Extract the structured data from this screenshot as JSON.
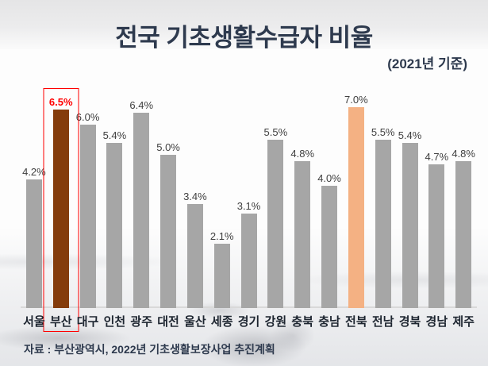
{
  "slide": {
    "title": "전국 기초생활수급자 비율",
    "subtitle": "(2021년 기준)",
    "source": "자료 : 부산광역시, 2022년 기초생활보장사업 추진계획"
  },
  "chart_data": {
    "type": "bar",
    "title": "전국 기초생활수급자 비율",
    "subtitle": "(2021년 기준)",
    "categories": [
      "서울",
      "부산",
      "대구",
      "인천",
      "광주",
      "대전",
      "울산",
      "세종",
      "경기",
      "강원",
      "충북",
      "충남",
      "전북",
      "전남",
      "경북",
      "경남",
      "제주"
    ],
    "values": [
      4.2,
      6.5,
      6.0,
      5.4,
      6.4,
      5.0,
      3.4,
      2.1,
      3.1,
      5.5,
      4.8,
      4.0,
      7.0,
      5.5,
      5.4,
      4.7,
      4.8
    ],
    "data_labels": [
      "4.2%",
      "6.5%",
      "6.0%",
      "5.4%",
      "6.4%",
      "5.0%",
      "3.4%",
      "2.1%",
      "3.1%",
      "5.5%",
      "4.8%",
      "4.0%",
      "7.0%",
      "5.5%",
      "5.4%",
      "4.7%",
      "4.8%"
    ],
    "xlabel": "",
    "ylabel": "",
    "ylim": [
      0,
      7.5
    ],
    "grid": false,
    "legend": "none",
    "highlight": {
      "boxed_category": "부산",
      "boxed_index": 1,
      "accent_category": "전북",
      "accent_index": 12
    },
    "colors": {
      "bar_default": "#A6A6A6",
      "bar_busan": "#843C0C",
      "bar_jeonbuk": "#F4B183",
      "highlight_box": "#FF0000",
      "busan_value_label": "#FF0000",
      "value_label": "#404040",
      "axis_line": "#D9D9D9",
      "title_text": "#2E3A4E"
    }
  }
}
